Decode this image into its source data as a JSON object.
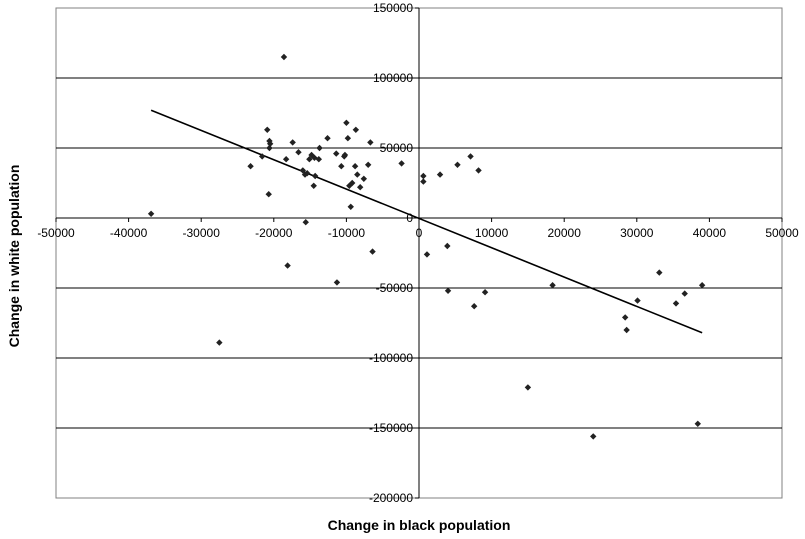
{
  "chart_data": {
    "type": "scatter",
    "title": "",
    "xlabel": "Change in black population",
    "ylabel": "Change in white population",
    "xlim": [
      -50000,
      50000
    ],
    "ylim": [
      -200000,
      150000
    ],
    "x_ticks": [
      -50000,
      -40000,
      -30000,
      -20000,
      -10000,
      0,
      10000,
      20000,
      30000,
      40000,
      50000
    ],
    "y_ticks": [
      -200000,
      -150000,
      -100000,
      -50000,
      0,
      50000,
      100000,
      150000
    ],
    "x_tick_labels": [
      "-50000",
      "-40000",
      "-30000",
      "-20000",
      "-10000",
      "0",
      "10000",
      "20000",
      "30000",
      "40000",
      "50000"
    ],
    "y_tick_labels": [
      "-200000",
      "-150000",
      "-100000",
      "-50000",
      "0",
      "50000",
      "100000",
      "150000"
    ],
    "grid": "horizontal",
    "marker_color": "#222222",
    "line_color": "#000000",
    "points": [
      {
        "x": -36900,
        "y": 3000
      },
      {
        "x": -27500,
        "y": -89000
      },
      {
        "x": -23200,
        "y": 37000
      },
      {
        "x": -21600,
        "y": 44000
      },
      {
        "x": -20900,
        "y": 63000
      },
      {
        "x": -20600,
        "y": 50000
      },
      {
        "x": -20500,
        "y": 53000
      },
      {
        "x": -20600,
        "y": 55000
      },
      {
        "x": -20700,
        "y": 17000
      },
      {
        "x": -18600,
        "y": 115000
      },
      {
        "x": -18300,
        "y": 42000
      },
      {
        "x": -18100,
        "y": -34000
      },
      {
        "x": -17400,
        "y": 54000
      },
      {
        "x": -16600,
        "y": 47000
      },
      {
        "x": -16000,
        "y": 34000
      },
      {
        "x": -15700,
        "y": 31000
      },
      {
        "x": -15600,
        "y": -3000
      },
      {
        "x": -15400,
        "y": 32000
      },
      {
        "x": -15100,
        "y": 42000
      },
      {
        "x": -14800,
        "y": 45000
      },
      {
        "x": -14500,
        "y": 23000
      },
      {
        "x": -14400,
        "y": 43000
      },
      {
        "x": -14300,
        "y": 30000
      },
      {
        "x": -13800,
        "y": 42000
      },
      {
        "x": -13700,
        "y": 50000
      },
      {
        "x": -12600,
        "y": 57000
      },
      {
        "x": -11400,
        "y": 46000
      },
      {
        "x": -11300,
        "y": -46000
      },
      {
        "x": -10700,
        "y": 37000
      },
      {
        "x": -10300,
        "y": 44000
      },
      {
        "x": -10200,
        "y": 45000
      },
      {
        "x": -10000,
        "y": 68000
      },
      {
        "x": -9800,
        "y": 57000
      },
      {
        "x": -9600,
        "y": 23000
      },
      {
        "x": -9400,
        "y": 8000
      },
      {
        "x": -9200,
        "y": 25000
      },
      {
        "x": -8800,
        "y": 37000
      },
      {
        "x": -8700,
        "y": 63000
      },
      {
        "x": -8500,
        "y": 31000
      },
      {
        "x": -8100,
        "y": 22000
      },
      {
        "x": -7600,
        "y": 28000
      },
      {
        "x": -7000,
        "y": 38000
      },
      {
        "x": -6700,
        "y": 54000
      },
      {
        "x": -6400,
        "y": -24000
      },
      {
        "x": -2400,
        "y": 39000
      },
      {
        "x": 600,
        "y": 30000
      },
      {
        "x": 600,
        "y": 26000
      },
      {
        "x": 1100,
        "y": -26000
      },
      {
        "x": 2900,
        "y": 31000
      },
      {
        "x": 3900,
        "y": -20000
      },
      {
        "x": 4000,
        "y": -52000
      },
      {
        "x": 5300,
        "y": 38000
      },
      {
        "x": 7100,
        "y": 44000
      },
      {
        "x": 7600,
        "y": -63000
      },
      {
        "x": 8200,
        "y": 34000
      },
      {
        "x": 9100,
        "y": -53000
      },
      {
        "x": 15000,
        "y": -121000
      },
      {
        "x": 18400,
        "y": -48000
      },
      {
        "x": 24000,
        "y": -156000
      },
      {
        "x": 28400,
        "y": -71000
      },
      {
        "x": 28600,
        "y": -80000
      },
      {
        "x": 30100,
        "y": -59000
      },
      {
        "x": 33100,
        "y": -39000
      },
      {
        "x": 35400,
        "y": -61000
      },
      {
        "x": 36600,
        "y": -54000
      },
      {
        "x": 38400,
        "y": -147000
      },
      {
        "x": 39000,
        "y": -48000
      }
    ],
    "trendline": {
      "x": [
        -36900,
        39000
      ],
      "y": [
        77000,
        -82000
      ]
    }
  }
}
